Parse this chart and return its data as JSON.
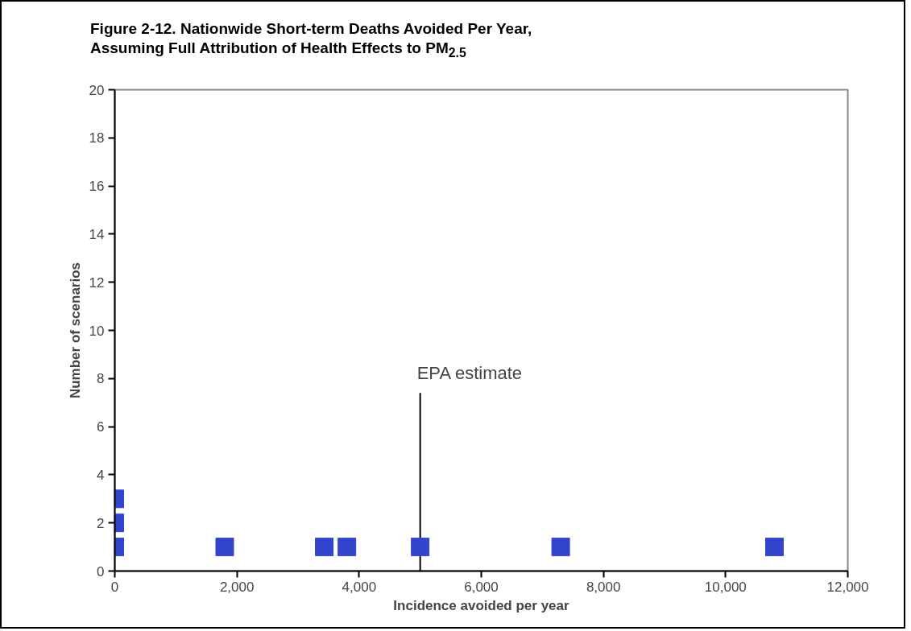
{
  "chart_data": {
    "type": "scatter",
    "title": "Figure 2-12.  Nationwide Short-term Deaths Avoided Per Year,\nAssuming Full Attribution of Health Effects to PM$_{2.5}$",
    "xlabel": "Incidence avoided per year",
    "ylabel": "Number of scenarios",
    "x": [
      0,
      0,
      0,
      1800,
      3430,
      3800,
      5000,
      7300,
      10800
    ],
    "series": [
      {
        "color": "#3344cc",
        "values": [
          1,
          2,
          3,
          1,
          1,
          1,
          1,
          1,
          1
        ]
      }
    ],
    "marker": "square",
    "xlim": [
      0,
      12000
    ],
    "xticks": [
      {
        "value": 0,
        "label": "0"
      },
      {
        "value": 2000,
        "label": "2,000"
      },
      {
        "value": 4000,
        "label": "4,000"
      },
      {
        "value": 6000,
        "label": "6,000"
      },
      {
        "value": 8000,
        "label": "8,000"
      },
      {
        "value": 10000,
        "label": "10,000"
      },
      {
        "value": 12000,
        "label": "12,000"
      }
    ],
    "ylim": [
      0,
      20
    ],
    "yticks": [
      0,
      2,
      4,
      6,
      8,
      10,
      12,
      14,
      16,
      18,
      20
    ],
    "ref_lines": [
      {
        "axis": "x",
        "value": 5000,
        "label": "EPA estimate",
        "color": "#000000"
      }
    ]
  }
}
